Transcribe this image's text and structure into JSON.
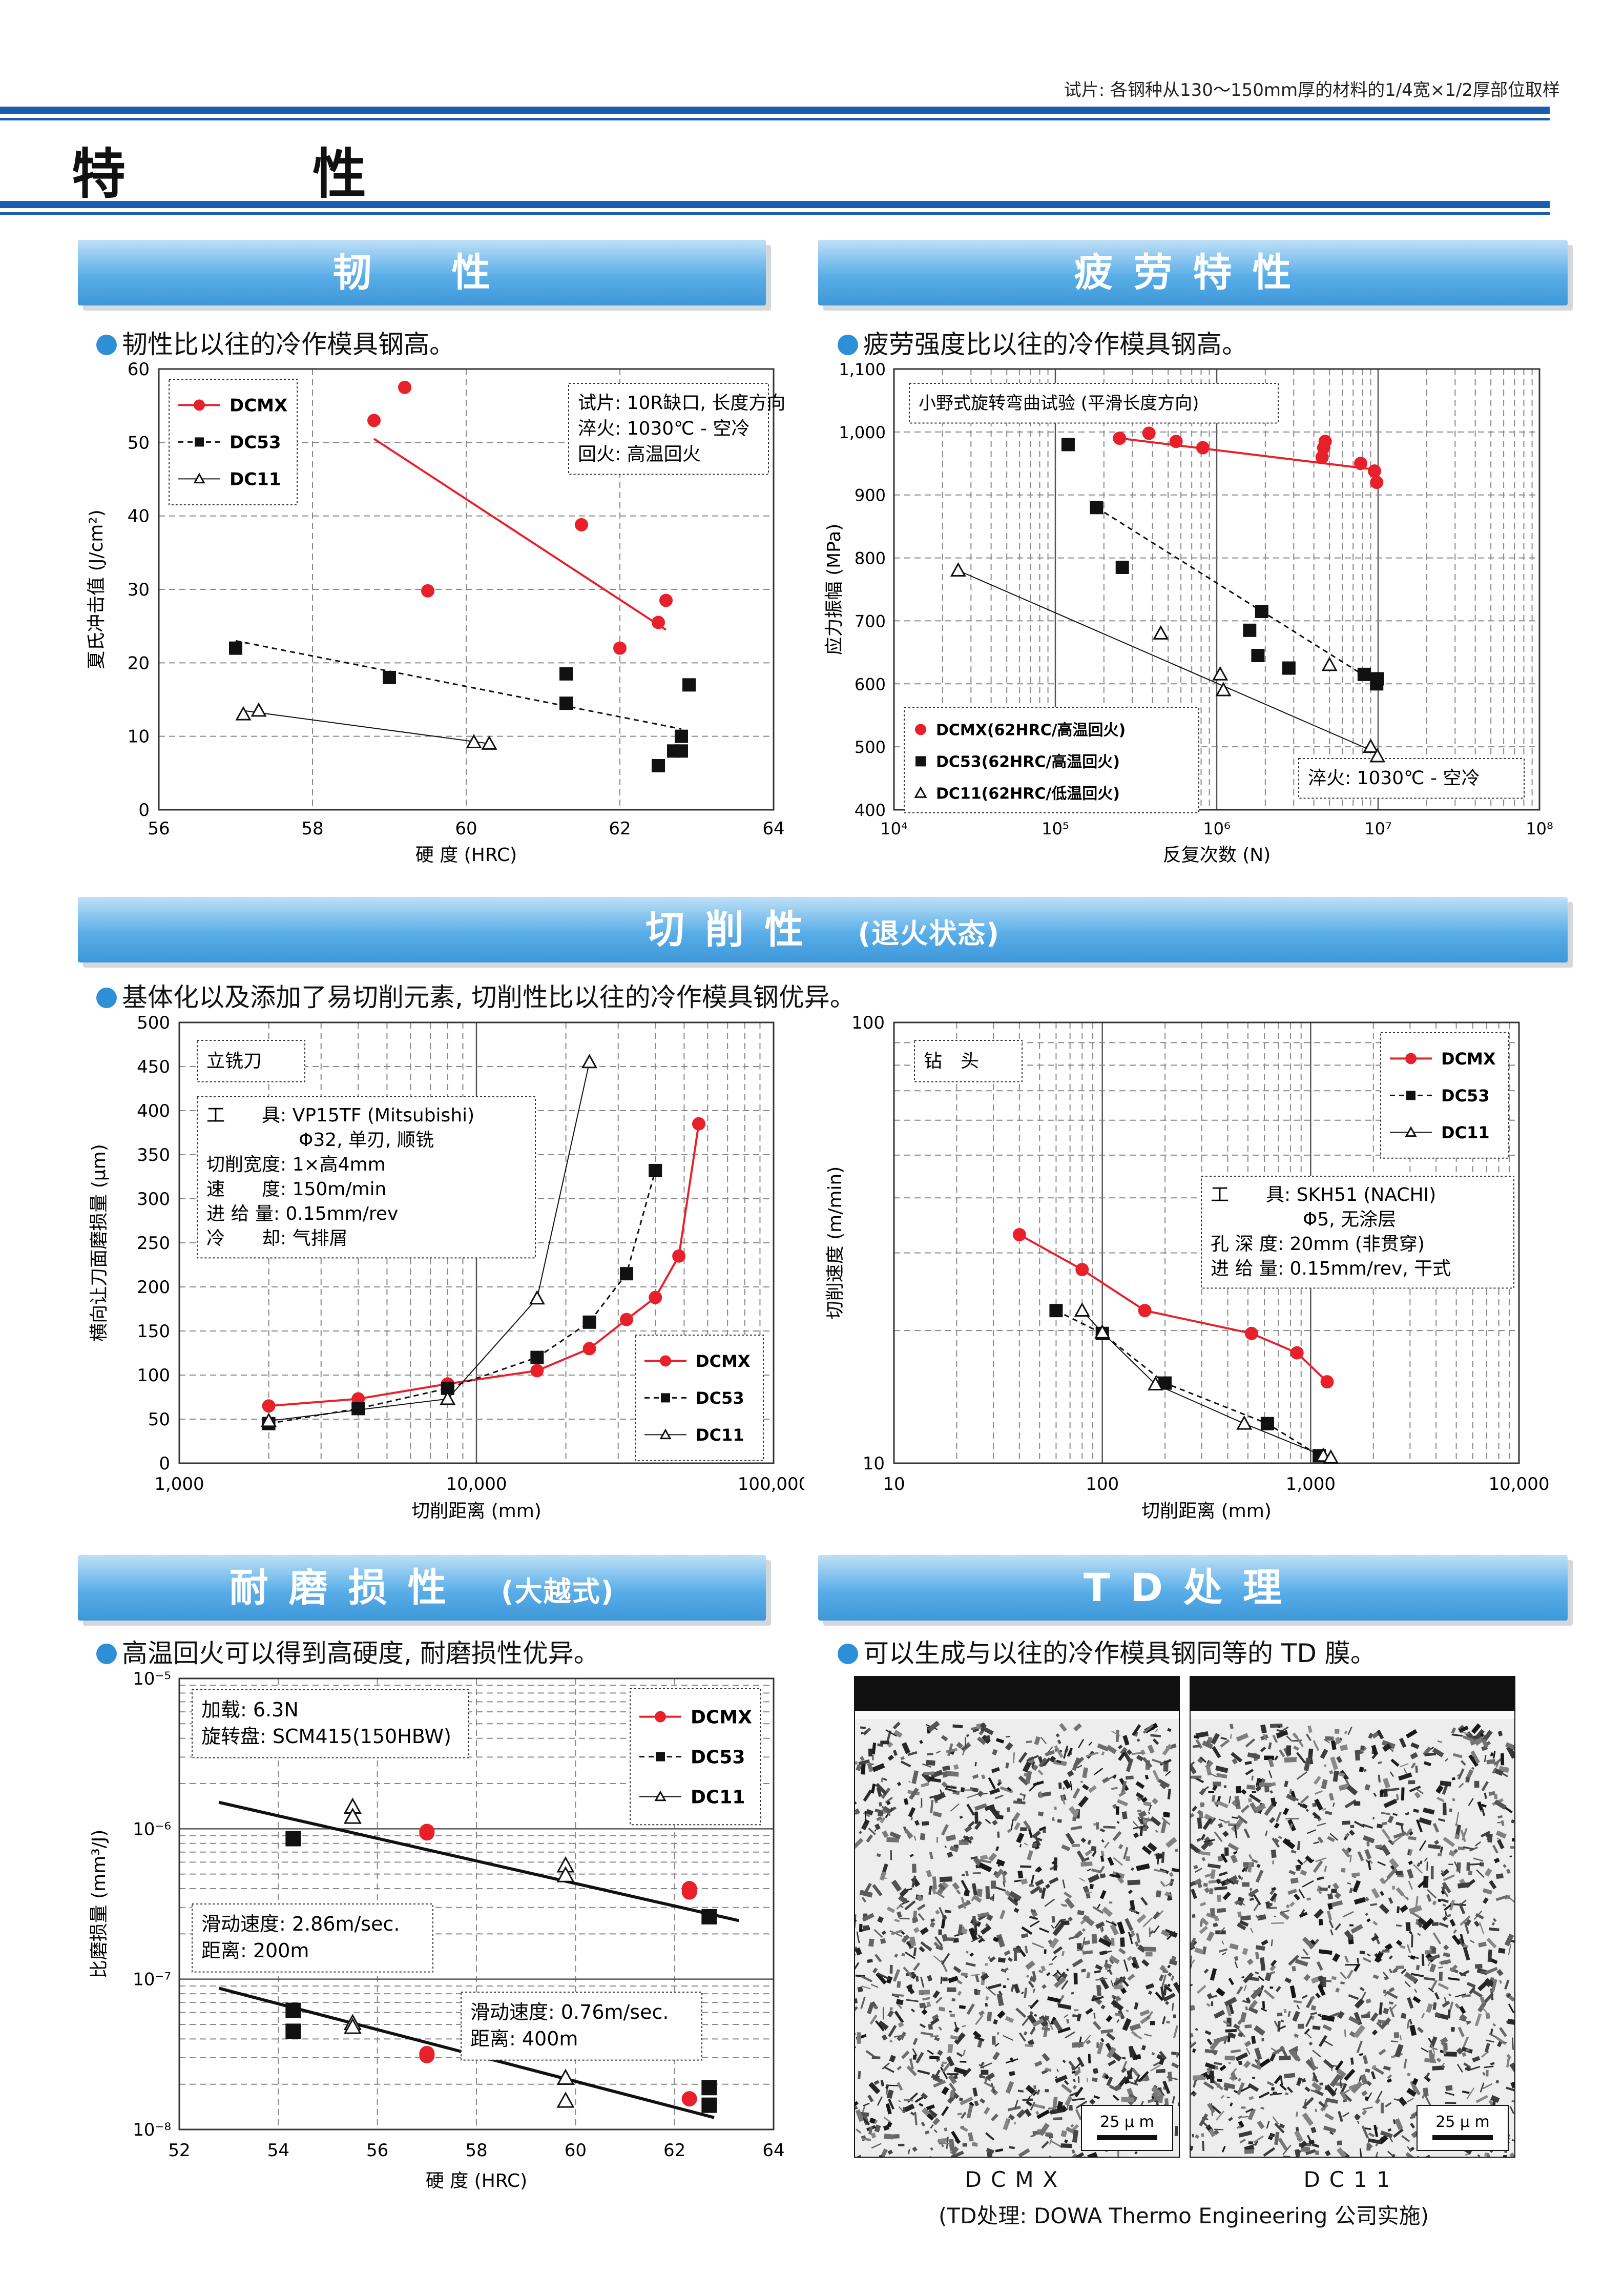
{
  "header": {
    "note": "试片: 各钢种从130〜150mm厚的材料的1/4宽×1/2厚部位取样",
    "title": "特　性"
  },
  "sections": {
    "toughness": {
      "title": "韧　性",
      "lead": "韧性比以往的冷作模具钢高。"
    },
    "fatigue": {
      "title": "疲劳特性",
      "lead": "疲劳强度比以往的冷作模具钢高。"
    },
    "machinability": {
      "title": "切削性",
      "title_sub": "(退火状态)",
      "lead": "基体化以及添加了易切削元素, 切削性比以往的冷作模具钢优异。"
    },
    "wear": {
      "title": "耐磨损性",
      "title_sub": "(大越式)",
      "lead": "高温回火可以得到高硬度, 耐磨损性优异。"
    },
    "td": {
      "title": "TD处理",
      "lead": "可以生成与以往的冷作模具钢同等的 TD 膜。"
    }
  },
  "colors": {
    "accent": "#2d8fd6",
    "dcmx": "#e8202a",
    "black": "#111111",
    "rule": "#1a5cb0"
  },
  "chart_data": [
    {
      "id": "toughness",
      "type": "scatter",
      "xlabel": "硬 度 (HRC)",
      "ylabel": "夏氏冲击值 (J/cm²)",
      "xlim": [
        56,
        64
      ],
      "ylim": [
        0,
        60
      ],
      "xticks": [
        "56",
        "58",
        "60",
        "62",
        "64"
      ],
      "yticks": [
        "0",
        "10",
        "20",
        "30",
        "40",
        "50",
        "60"
      ],
      "legend": [
        "DCMX",
        "DC53",
        "DC11"
      ],
      "note": [
        "试片: 10R缺口, 长度方向",
        "淬火: 1030℃ - 空冷",
        "回火: 高温回火"
      ],
      "series": [
        {
          "name": "DCMX",
          "points": [
            [
              58.8,
              53
            ],
            [
              59.2,
              57.5
            ],
            [
              59.5,
              29.8
            ],
            [
              61.5,
              38.8
            ],
            [
              62,
              22
            ],
            [
              62.5,
              25.5
            ],
            [
              62.6,
              28.5
            ]
          ],
          "fit": [
            [
              58.8,
              50.5
            ],
            [
              62.6,
              24.5
            ]
          ]
        },
        {
          "name": "DC53",
          "points": [
            [
              57,
              22
            ],
            [
              59,
              18
            ],
            [
              61.3,
              18.5
            ],
            [
              61.3,
              14.5
            ],
            [
              62.5,
              6
            ],
            [
              62.7,
              8
            ],
            [
              62.8,
              8
            ],
            [
              62.8,
              10
            ],
            [
              62.9,
              17
            ]
          ],
          "fit": [
            [
              57,
              23
            ],
            [
              62.8,
              11
            ]
          ]
        },
        {
          "name": "DC11",
          "points": [
            [
              57.1,
              13
            ],
            [
              57.3,
              13.5
            ],
            [
              60.1,
              9.2
            ],
            [
              60.3,
              9
            ]
          ],
          "fit": [
            [
              57.1,
              13.5
            ],
            [
              60.3,
              9
            ]
          ]
        }
      ]
    },
    {
      "id": "fatigue",
      "type": "scatter",
      "xlabel": "反复次数 (N)",
      "ylabel": "应力振幅 (MPa)",
      "xscale": "log",
      "xlim": [
        10000,
        100000000
      ],
      "ylim": [
        400,
        1100
      ],
      "xticks": [
        "10⁴",
        "10⁵",
        "10⁶",
        "10⁷",
        "10⁸"
      ],
      "yticks": [
        "400",
        "500",
        "600",
        "700",
        "800",
        "900",
        "1,000",
        "1,100"
      ],
      "title": "小野式旋转弯曲试验 (平滑长度方向)",
      "note": "淬火: 1030℃ - 空冷",
      "legend": [
        "DCMX(62HRC/高温回火)",
        "DC53(62HRC/高温回火)",
        "DC11(62HRC/低温回火)"
      ],
      "series": [
        {
          "name": "DCMX(62HRC/高温回火)",
          "points": [
            [
              250000,
              990
            ],
            [
              380000,
              998
            ],
            [
              560000,
              985
            ],
            [
              820000,
              975
            ],
            [
              4500000,
              960
            ],
            [
              4600000,
              975
            ],
            [
              4700000,
              985
            ],
            [
              7800000,
              950
            ],
            [
              9500000,
              938
            ],
            [
              9800000,
              920
            ]
          ],
          "fit": [
            [
              250000,
              990
            ],
            [
              9800000,
              940
            ]
          ]
        },
        {
          "name": "DC53(62HRC/高温回火)",
          "points": [
            [
              120000,
              980
            ],
            [
              180000,
              880
            ],
            [
              260000,
              785
            ],
            [
              1600000,
              685
            ],
            [
              1800000,
              645
            ],
            [
              1900000,
              715
            ],
            [
              2800000,
              625
            ],
            [
              8200000,
              615
            ],
            [
              9800000,
              600
            ],
            [
              9900000,
              608
            ]
          ],
          "fit": [
            [
              180000,
              880
            ],
            [
              9900000,
              600
            ]
          ]
        },
        {
          "name": "DC11(62HRC/低温回火)",
          "points": [
            [
              25000,
              780
            ],
            [
              450000,
              680
            ],
            [
              1050000,
              615
            ],
            [
              1100000,
              590
            ],
            [
              5000000,
              630
            ],
            [
              9000000,
              500
            ],
            [
              9900000,
              485
            ]
          ],
          "fit": [
            [
              25000,
              780
            ],
            [
              9900000,
              490
            ]
          ]
        }
      ]
    },
    {
      "id": "endmill",
      "type": "line",
      "xlabel": "切削距离 (mm)",
      "ylabel": "横向让刀面磨损量 (μm)",
      "xscale": "log",
      "xlim": [
        1000,
        100000
      ],
      "ylim": [
        0,
        500
      ],
      "xticks": [
        "1,000",
        "10,000",
        "100,000"
      ],
      "yticks": [
        "0",
        "50",
        "100",
        "150",
        "200",
        "250",
        "300",
        "350",
        "400",
        "450",
        "500"
      ],
      "title": "立铣刀",
      "note": [
        "工　　具: VP15TF (Mitsubishi)",
        "　　　　　Φ32, 单刃, 顺铣",
        "切削宽度: 1×高4mm",
        "速　　度: 150m/min",
        "进 给 量: 0.15mm/rev",
        "冷　　却: 气排屑"
      ],
      "legend": [
        "DCMX",
        "DC53",
        "DC11"
      ],
      "series": [
        {
          "name": "DCMX",
          "points": [
            [
              2000,
              65
            ],
            [
              4000,
              73
            ],
            [
              8000,
              90
            ],
            [
              16000,
              105
            ],
            [
              24000,
              130
            ],
            [
              32000,
              163
            ],
            [
              40000,
              188
            ],
            [
              48000,
              235
            ],
            [
              56000,
              385
            ]
          ]
        },
        {
          "name": "DC53",
          "points": [
            [
              2000,
              45
            ],
            [
              4000,
              62
            ],
            [
              8000,
              85
            ],
            [
              16000,
              120
            ],
            [
              24000,
              160
            ],
            [
              32000,
              215
            ],
            [
              40000,
              332
            ]
          ]
        },
        {
          "name": "DC11",
          "points": [
            [
              2000,
              48
            ],
            [
              8000,
              73
            ],
            [
              16000,
              187
            ],
            [
              24000,
              455
            ]
          ]
        }
      ]
    },
    {
      "id": "drill",
      "type": "line",
      "xlabel": "切削距离 (mm)",
      "ylabel": "切削速度 (m/min)",
      "xscale": "log",
      "yscale": "log",
      "xlim": [
        10,
        10000
      ],
      "ylim": [
        10,
        100
      ],
      "xticks": [
        "10",
        "100",
        "1,000",
        "10,000"
      ],
      "yticks": [
        "10",
        "100"
      ],
      "title": "钻　头",
      "note": [
        "工　　具: SKH51 (NACHI)",
        "　　　　　Φ5, 无涂层",
        "孔 深 度: 20mm (非贯穿)",
        "进 给 量: 0.15mm/rev, 干式"
      ],
      "legend": [
        "DCMX",
        "DC53",
        "DC11"
      ],
      "series": [
        {
          "name": "DCMX",
          "points": [
            [
              40,
              33
            ],
            [
              80,
              27.5
            ],
            [
              160,
              22.2
            ],
            [
              520,
              19.7
            ],
            [
              860,
              17.8
            ],
            [
              1200,
              15.3
            ]
          ]
        },
        {
          "name": "DC53",
          "points": [
            [
              60,
              22.2
            ],
            [
              100,
              19.7
            ],
            [
              200,
              15.2
            ],
            [
              620,
              12.3
            ],
            [
              1100,
              10.4
            ]
          ]
        },
        {
          "name": "DC11",
          "points": [
            [
              80,
              22.2
            ],
            [
              100,
              19.8
            ],
            [
              180,
              15.1
            ],
            [
              480,
              12.3
            ],
            [
              1150,
              10.4
            ],
            [
              1250,
              10.3
            ]
          ]
        }
      ]
    },
    {
      "id": "wear",
      "type": "scatter",
      "xlabel": "硬 度 (HRC)",
      "ylabel": "比磨损量 (mm³/J)",
      "yscale": "log",
      "xlim": [
        52,
        64
      ],
      "ylim": [
        1e-08,
        1e-05
      ],
      "xticks": [
        "52",
        "54",
        "56",
        "58",
        "60",
        "62",
        "64"
      ],
      "yticks": [
        "10⁻⁸",
        "10⁻⁷",
        "10⁻⁶",
        "10⁻⁵"
      ],
      "note": [
        "加载: 6.3N",
        "旋转盘: SCM415(150HBW)"
      ],
      "annotations": [
        [
          "滑动速度: 2.86m/sec.",
          "距离: 200m"
        ],
        [
          "滑动速度: 0.76m/sec.",
          "距离: 400m"
        ]
      ],
      "legend": [
        "DCMX",
        "DC53",
        "DC11"
      ],
      "series": [
        {
          "name": "DCMX",
          "points": [
            [
              57,
              9.6e-07
            ],
            [
              57,
              9.4e-07
            ],
            [
              62.3,
              4e-07
            ],
            [
              62.3,
              3.8e-07
            ],
            [
              57,
              3.1e-08
            ],
            [
              57,
              3.2e-08
            ],
            [
              62.3,
              1.6e-08
            ]
          ]
        },
        {
          "name": "DC53",
          "points": [
            [
              54.3,
              8.6e-07
            ],
            [
              62.7,
              2.6e-07
            ],
            [
              54.3,
              6.2e-08
            ],
            [
              54.3,
              4.5e-08
            ],
            [
              62.7,
              1.9e-08
            ],
            [
              62.7,
              1.45e-08
            ]
          ]
        },
        {
          "name": "DC11",
          "points": [
            [
              55.5,
              1.4e-06
            ],
            [
              55.5,
              1.2e-06
            ],
            [
              59.8,
              5.7e-07
            ],
            [
              59.8,
              4.9e-07
            ],
            [
              55.5,
              5.1e-08
            ],
            [
              55.5,
              4.8e-08
            ],
            [
              59.8,
              2.2e-08
            ],
            [
              59.8,
              1.55e-08
            ]
          ]
        }
      ],
      "fit_lines": [
        [
          [
            52.8,
            1.5e-06
          ],
          [
            63.3,
            2.45e-07
          ]
        ],
        [
          [
            52.8,
            8.7e-08
          ],
          [
            62.8,
            1.2e-08
          ]
        ]
      ]
    }
  ],
  "td": {
    "scale": "25 μ m",
    "labels": [
      "DCMX",
      "DC11"
    ],
    "footnote": "(TD处理: DOWA Thermo Engineering 公司实施)"
  }
}
